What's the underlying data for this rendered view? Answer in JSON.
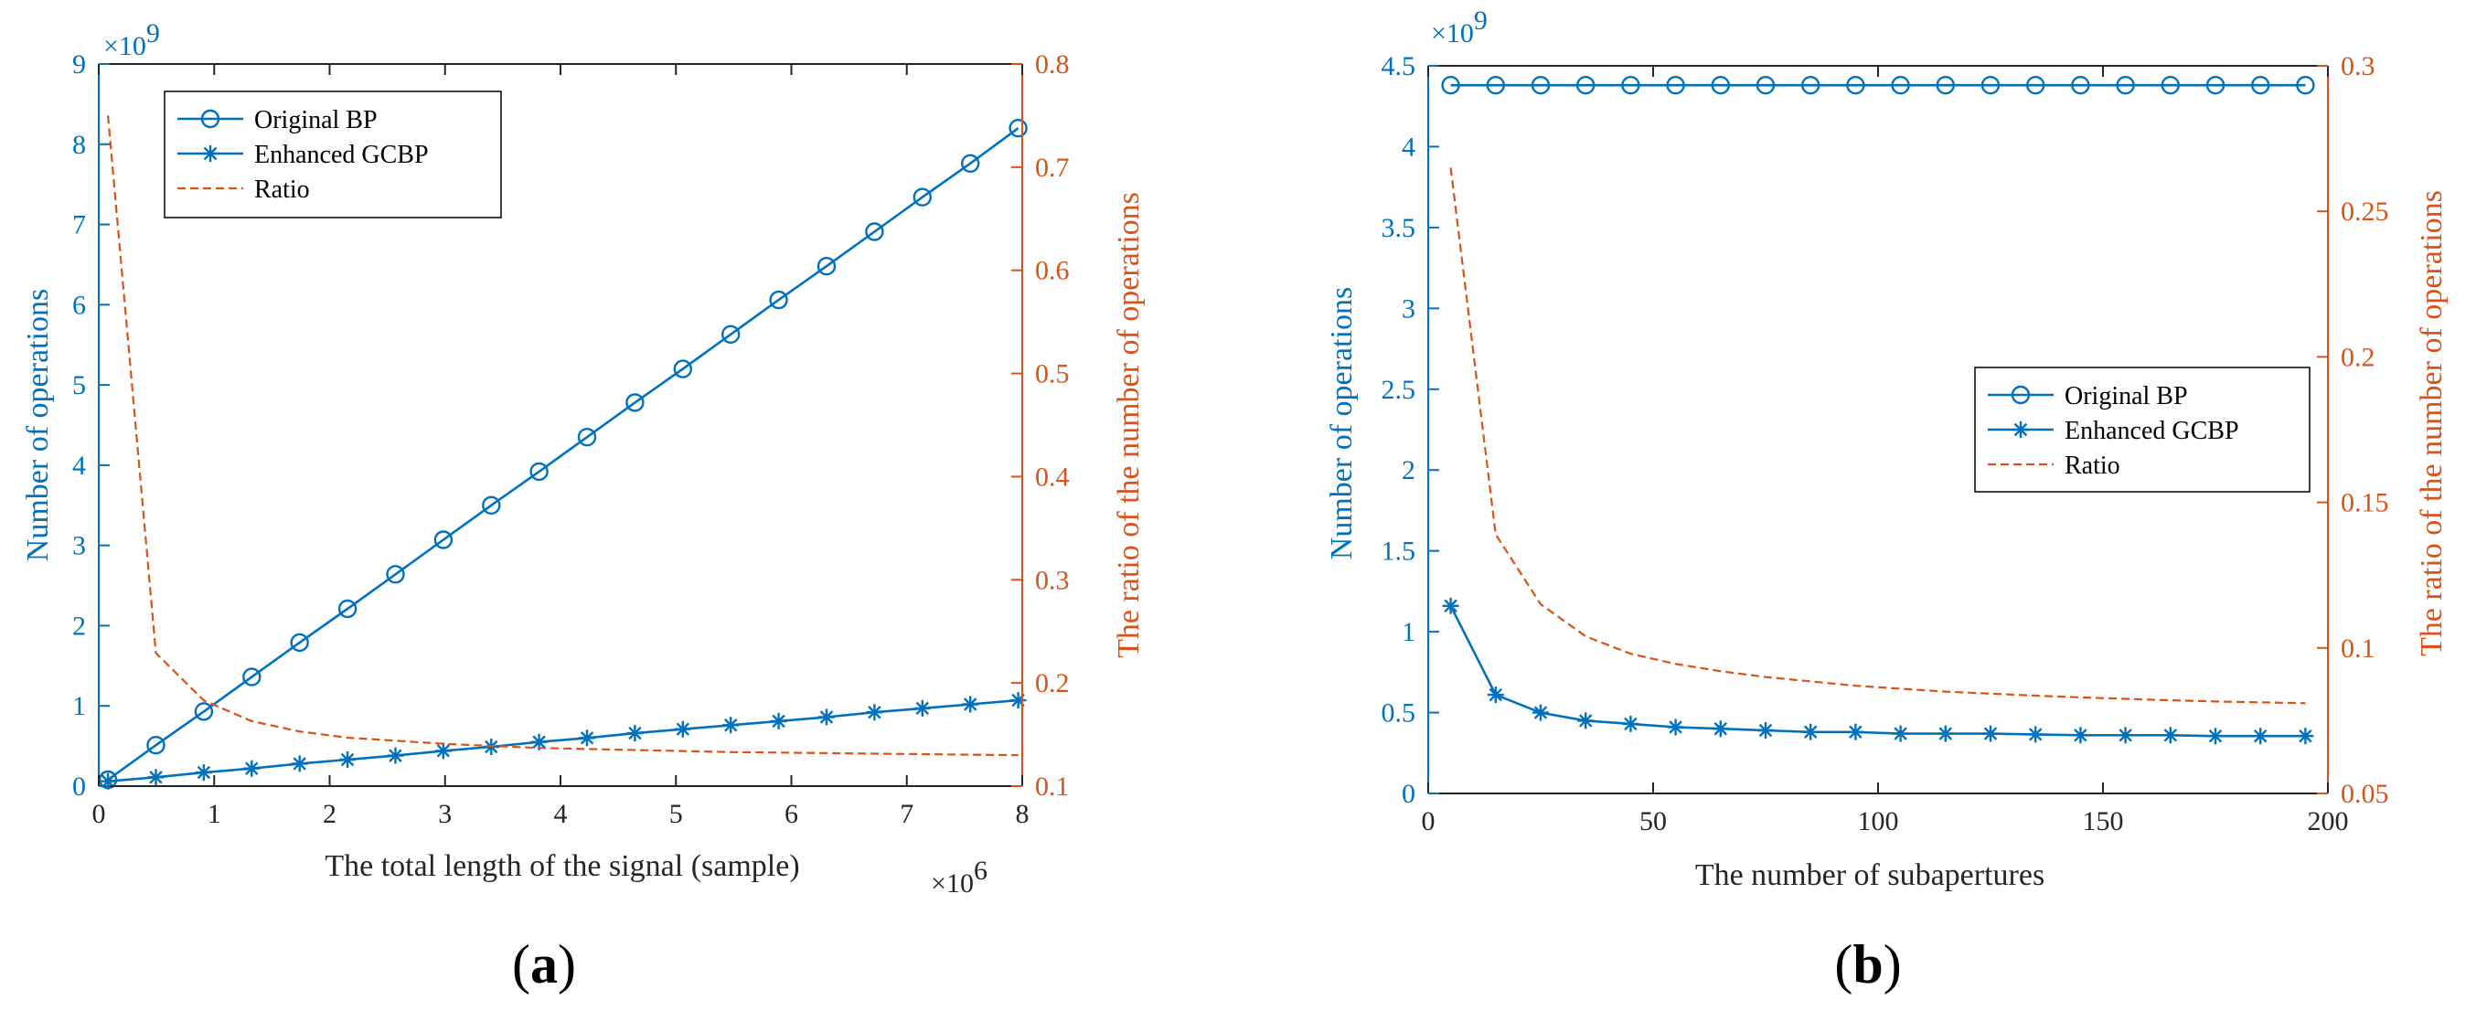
{
  "colors": {
    "blue": "#0072BD",
    "orange": "#D95319",
    "axis": "#262626"
  },
  "chart_data": [
    {
      "type": "line",
      "panel_label": "a",
      "xlabel": "The total length of the signal (sample)",
      "ylabel_left": "Number of operations",
      "ylabel_right": "The ratio of the number of operations",
      "x_exponent": "6",
      "y_exponent": "9",
      "xlim": [
        0,
        8
      ],
      "ylim_left": [
        0,
        9
      ],
      "ylim_right": [
        0.1,
        0.8
      ],
      "x_ticks": [
        0,
        1,
        2,
        3,
        4,
        5,
        6,
        7,
        8
      ],
      "y_ticks_left": [
        0,
        1,
        2,
        3,
        4,
        5,
        6,
        7,
        8,
        9
      ],
      "y_ticks_right": [
        0.1,
        0.2,
        0.3,
        0.4,
        0.5,
        0.6,
        0.7,
        0.8
      ],
      "x_tick_labels": [
        "0",
        "1",
        "2",
        "3",
        "4",
        "5",
        "6",
        "7",
        "8"
      ],
      "y_tick_labels_left": [
        "0",
        "1",
        "2",
        "3",
        "4",
        "5",
        "6",
        "7",
        "8",
        "9"
      ],
      "y_tick_labels_right": [
        "0.1",
        "0.2",
        "0.3",
        "0.4",
        "0.5",
        "0.6",
        "0.7",
        "0.8"
      ],
      "legend_position": "top-left",
      "x": [
        0.08,
        0.495,
        0.91,
        1.325,
        1.74,
        2.155,
        2.57,
        2.985,
        3.4,
        3.815,
        4.23,
        4.645,
        5.06,
        5.475,
        5.89,
        6.305,
        6.72,
        7.135,
        7.55,
        7.965
      ],
      "series": [
        {
          "name": "Original BP",
          "axis": "left",
          "marker": "circle",
          "style": "solid",
          "values": [
            0.08,
            0.51,
            0.93,
            1.36,
            1.79,
            2.21,
            2.64,
            3.07,
            3.5,
            3.92,
            4.35,
            4.78,
            5.2,
            5.63,
            6.06,
            6.48,
            6.91,
            7.34,
            7.76,
            8.2
          ]
        },
        {
          "name": "Enhanced GCBP",
          "axis": "left",
          "marker": "star",
          "style": "solid",
          "values": [
            0.06,
            0.11,
            0.17,
            0.22,
            0.28,
            0.33,
            0.38,
            0.44,
            0.49,
            0.55,
            0.6,
            0.66,
            0.71,
            0.76,
            0.81,
            0.86,
            0.92,
            0.97,
            1.02,
            1.07
          ]
        },
        {
          "name": "Ratio",
          "axis": "right",
          "marker": "none",
          "style": "dashed",
          "values": [
            0.75,
            0.229,
            0.183,
            0.163,
            0.153,
            0.147,
            0.144,
            0.141,
            0.139,
            0.137,
            0.136,
            0.135,
            0.134,
            0.133,
            0.1325,
            0.132,
            0.1315,
            0.131,
            0.1305,
            0.13
          ]
        }
      ]
    },
    {
      "type": "line",
      "panel_label": "b",
      "xlabel": "The number of subapertures",
      "ylabel_left": "Number of operations",
      "ylabel_right": "The ratio of the number of operations",
      "y_exponent": "9",
      "xlim": [
        0,
        200
      ],
      "ylim_left": [
        0,
        4.5
      ],
      "ylim_right": [
        0.05,
        0.3
      ],
      "x_ticks": [
        0,
        50,
        100,
        150,
        200
      ],
      "y_ticks_left": [
        0,
        0.5,
        1,
        1.5,
        2,
        2.5,
        3,
        3.5,
        4,
        4.5
      ],
      "y_ticks_right": [
        0.05,
        0.1,
        0.15,
        0.2,
        0.25,
        0.3
      ],
      "x_tick_labels": [
        "0",
        "50",
        "100",
        "150",
        "200"
      ],
      "y_tick_labels_left": [
        "0",
        "0.5",
        "1",
        "1.5",
        "2",
        "2.5",
        "3",
        "3.5",
        "4",
        "4.5"
      ],
      "y_tick_labels_right": [
        "0.05",
        "0.1",
        "0.15",
        "0.2",
        "0.25",
        "0.3"
      ],
      "legend_position": "center-right",
      "x": [
        5,
        15,
        25,
        35,
        45,
        55,
        65,
        75,
        85,
        95,
        105,
        115,
        125,
        135,
        145,
        155,
        165,
        175,
        185,
        195
      ],
      "series": [
        {
          "name": "Original BP",
          "axis": "left",
          "marker": "circle",
          "style": "solid",
          "values": [
            4.38,
            4.38,
            4.38,
            4.38,
            4.38,
            4.38,
            4.38,
            4.38,
            4.38,
            4.38,
            4.38,
            4.38,
            4.38,
            4.38,
            4.38,
            4.38,
            4.38,
            4.38,
            4.38,
            4.38
          ]
        },
        {
          "name": "Enhanced GCBP",
          "axis": "left",
          "marker": "star",
          "style": "solid",
          "values": [
            1.16,
            0.61,
            0.5,
            0.45,
            0.43,
            0.41,
            0.4,
            0.39,
            0.38,
            0.38,
            0.37,
            0.37,
            0.37,
            0.365,
            0.36,
            0.36,
            0.36,
            0.355,
            0.355,
            0.355
          ]
        },
        {
          "name": "Ratio",
          "axis": "right",
          "marker": "none",
          "style": "dashed",
          "values": [
            0.265,
            0.139,
            0.115,
            0.104,
            0.098,
            0.0945,
            0.092,
            0.09,
            0.0885,
            0.087,
            0.086,
            0.085,
            0.0843,
            0.0836,
            0.083,
            0.0825,
            0.082,
            0.0816,
            0.0813,
            0.081
          ]
        }
      ]
    }
  ]
}
